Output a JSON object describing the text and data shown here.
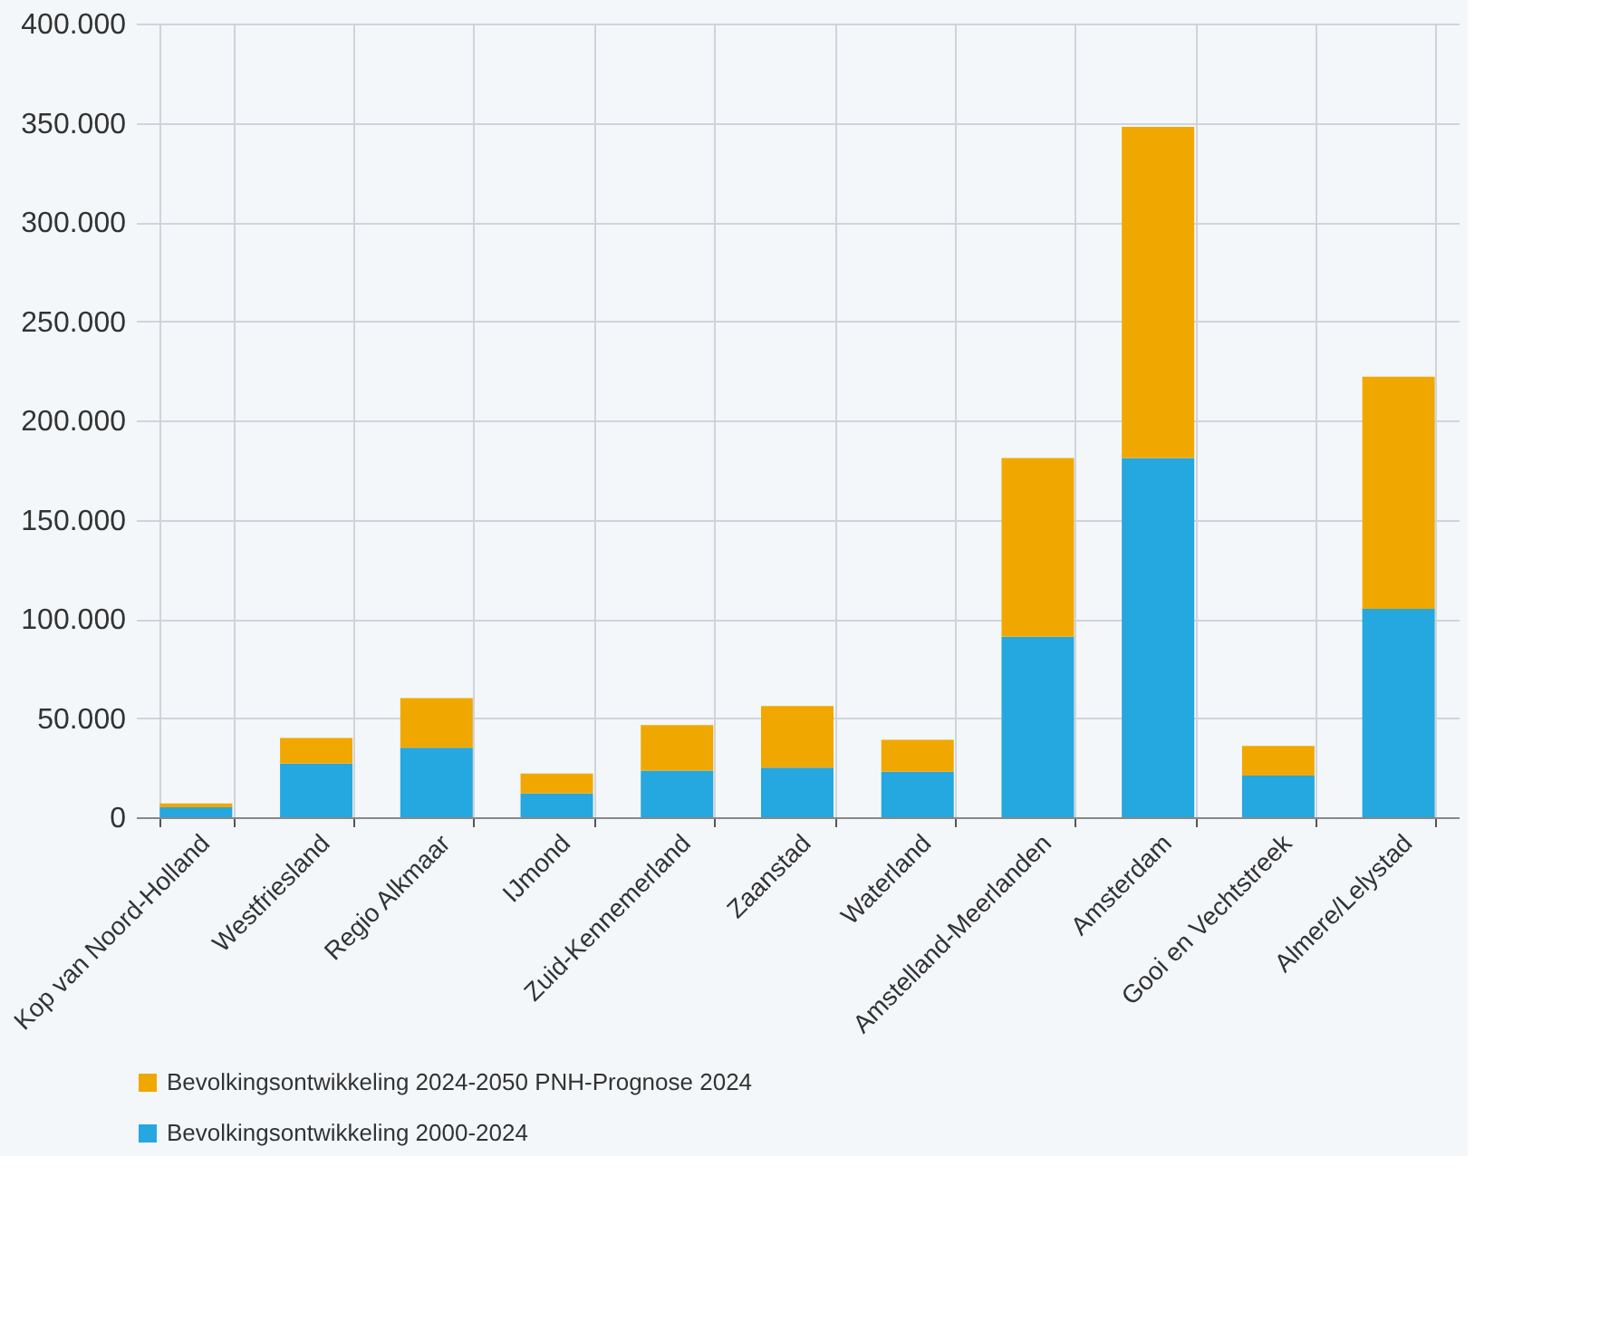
{
  "chart_data": {
    "type": "bar",
    "stacked": true,
    "categories": [
      "Kop van Noord-Holland",
      "Westfriesland",
      "Regio Alkmaar",
      "IJmond",
      "Zuid-Kennemerland",
      "Zaanstad",
      "Waterland",
      "Amstelland-Meerlanden",
      "Amsterdam",
      "Gooi en Vechtstreek",
      "Almere/Lelystad"
    ],
    "series": [
      {
        "name": "Bevolkingsontwikkeling 2000-2024",
        "color": "#25a7df",
        "values": [
          5000,
          27000,
          35000,
          12000,
          23500,
          25000,
          23000,
          91000,
          181000,
          21000,
          105000
        ]
      },
      {
        "name": "Bevolkingsontwikkeling 2024-2050 PNH-Prognose 2024",
        "color": "#f0a800",
        "values": [
          2000,
          13000,
          25000,
          10000,
          23000,
          31000,
          16000,
          90000,
          167000,
          15000,
          117000
        ]
      }
    ],
    "ylim": [
      0,
      400000
    ],
    "yticks": [
      0,
      {
        "value": 50000,
        "label": "50.000"
      },
      {
        "value": 100000,
        "label": "100.000"
      },
      {
        "value": 150000,
        "label": "150.000"
      },
      {
        "value": 200000,
        "label": "200.000"
      },
      {
        "value": 250000,
        "label": "250.000"
      },
      {
        "value": 300000,
        "label": "300.000"
      },
      {
        "value": 350000,
        "label": "350.000"
      },
      {
        "value": 400000,
        "label": "400.000"
      }
    ],
    "grid": true,
    "legend": "bottom"
  }
}
